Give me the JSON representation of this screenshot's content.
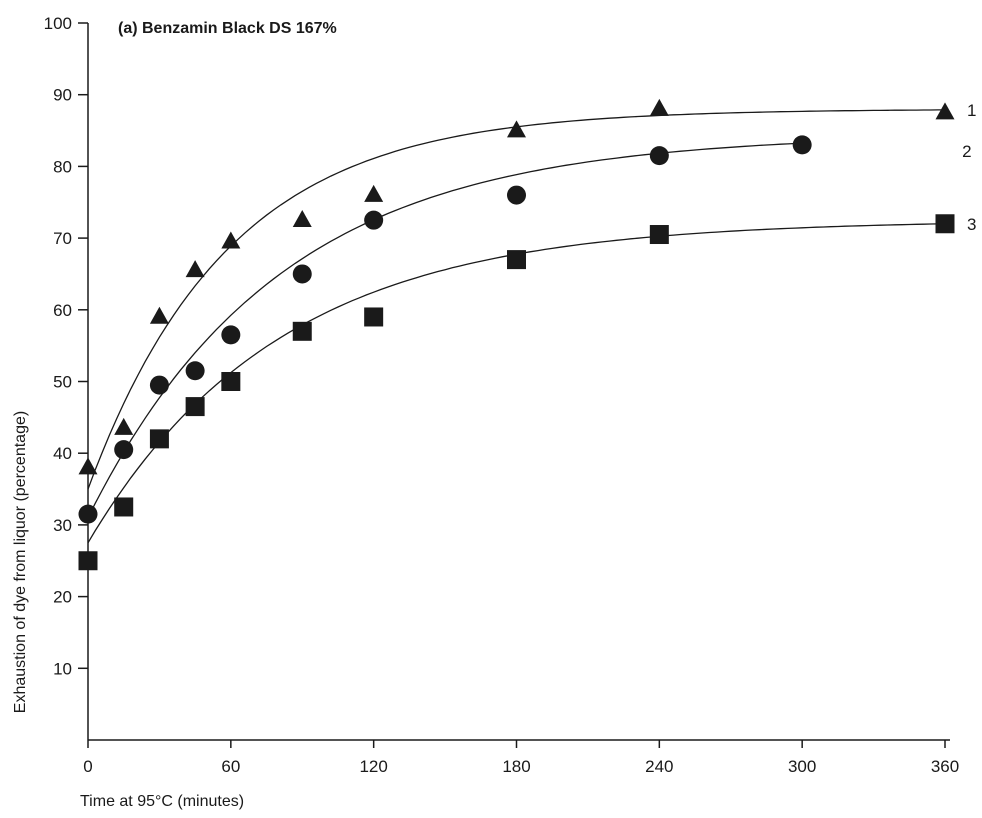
{
  "chart_data": {
    "type": "scatter",
    "title": "(a) Benzamin Black DS 167%",
    "xlabel": "Time at 95°C (minutes)",
    "ylabel": "Exhaustion of dye from liquor (percentage)",
    "xlim": [
      0,
      360
    ],
    "ylim": [
      0,
      100
    ],
    "x_ticks": [
      0,
      60,
      120,
      180,
      240,
      300,
      360
    ],
    "y_ticks": [
      10,
      20,
      30,
      40,
      50,
      60,
      70,
      80,
      90,
      100
    ],
    "grid": false,
    "legend": "none",
    "series": [
      {
        "name": "1",
        "marker": "triangle",
        "points": [
          [
            0,
            38
          ],
          [
            15,
            43.5
          ],
          [
            30,
            59
          ],
          [
            45,
            65.5
          ],
          [
            60,
            69.5
          ],
          [
            90,
            72.5
          ],
          [
            120,
            76
          ],
          [
            180,
            85
          ],
          [
            240,
            88
          ],
          [
            360,
            87.5
          ]
        ],
        "fit_curve": {
          "y0": 35,
          "ymax": 88,
          "k": 0.017
        }
      },
      {
        "name": "2",
        "marker": "circle",
        "points": [
          [
            0,
            31.5
          ],
          [
            15,
            40.5
          ],
          [
            30,
            49.5
          ],
          [
            45,
            51.5
          ],
          [
            60,
            56.5
          ],
          [
            90,
            65
          ],
          [
            120,
            72.5
          ],
          [
            180,
            76
          ],
          [
            240,
            81.5
          ],
          [
            300,
            83
          ]
        ],
        "fit_curve": {
          "y0": 31,
          "ymax": 84.5,
          "k": 0.0125
        }
      },
      {
        "name": "3",
        "marker": "square",
        "points": [
          [
            0,
            25
          ],
          [
            15,
            32.5
          ],
          [
            30,
            42
          ],
          [
            45,
            46.5
          ],
          [
            60,
            50
          ],
          [
            90,
            57
          ],
          [
            120,
            59
          ],
          [
            180,
            67
          ],
          [
            240,
            70.5
          ],
          [
            360,
            72
          ]
        ],
        "fit_curve": {
          "y0": 27.5,
          "ymax": 72.5,
          "k": 0.0125
        }
      }
    ]
  }
}
